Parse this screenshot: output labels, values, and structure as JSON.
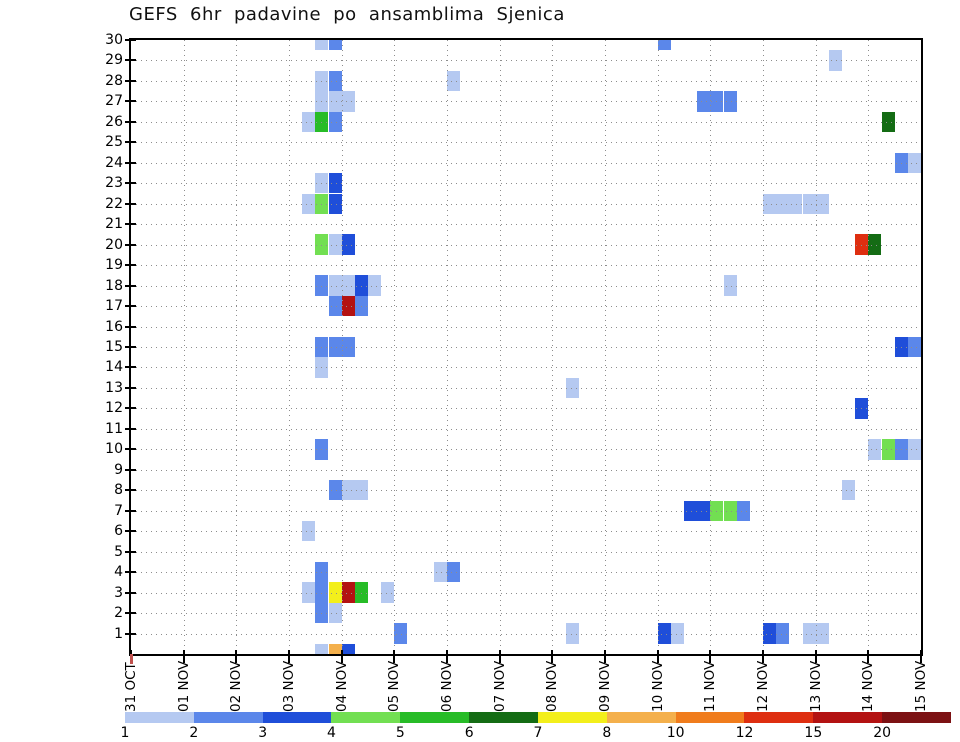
{
  "title": "GEFS 6hr padavine po ansamblima Sjenica",
  "y_axis": {
    "member_labels": [
      "30",
      "29",
      "28",
      "27",
      "26",
      "25",
      "24",
      "23",
      "22",
      "21",
      "20",
      "19",
      "18",
      "17",
      "16",
      "15",
      "14",
      "13",
      "12",
      "11",
      "10",
      "9",
      "8",
      "7",
      "6",
      "5",
      "4",
      "3",
      "2",
      "1"
    ]
  },
  "x_axis": {
    "day_labels": [
      "31 OCT",
      "01 NOV",
      "02 NOV",
      "03 NOV",
      "04 NOV",
      "05 NOV",
      "06 NOV",
      "07 NOV",
      "08 NOV",
      "09 NOV",
      "10 NOV",
      "11 NOV",
      "12 NOV",
      "13 NOV",
      "14 NOV",
      "15 NOV"
    ],
    "origin_marker_color": "#c0504d"
  },
  "colorbar": {
    "boundary_labels": [
      "1",
      "2",
      "3",
      "4",
      "5",
      "6",
      "7",
      "8",
      "10",
      "12",
      "15",
      "20"
    ],
    "segments": [
      {
        "range": "1-2",
        "color": "#b5c9f1"
      },
      {
        "range": "2-3",
        "color": "#5b87ea"
      },
      {
        "range": "3-4",
        "color": "#1f4ed9"
      },
      {
        "range": "4-5",
        "color": "#72df52"
      },
      {
        "range": "5-6",
        "color": "#27bc27"
      },
      {
        "range": "6-7",
        "color": "#146c14"
      },
      {
        "range": "7-8",
        "color": "#f3ef1b"
      },
      {
        "range": "8-10",
        "color": "#f4b04c"
      },
      {
        "range": "10-12",
        "color": "#f07c1c"
      },
      {
        "range": "12-15",
        "color": "#de2e10"
      },
      {
        "range": "15-20",
        "color": "#b31212"
      },
      {
        "range": ">20",
        "color": "#7c1113"
      }
    ]
  },
  "chart_data": {
    "type": "heatmap",
    "title": "GEFS 6hr padavine po ansamblima Sjenica",
    "x_unit": "6-hour periods, day index 0 = 31 OCT, slot 0-3 = 00-06h / 06-12h / 12-18h / 18-00h UTC",
    "y_unit": "ensemble member (1-30, 0 = bottom clipped row at axis)",
    "x_range_labels": [
      "31 OCT",
      "15 NOV"
    ],
    "members_shown": [
      1,
      30
    ],
    "grid": "dotted, one horizontal line per member, one vertical line per day",
    "value_bins_mm": [
      "1-2",
      "2-3",
      "3-4",
      "4-5",
      "5-6",
      "6-7",
      "7-8",
      "8-10",
      "10-12",
      "12-15",
      "15-20",
      ">20"
    ],
    "bin_colors": {
      "1": "#b5c9f1",
      "2": "#5b87ea",
      "3": "#1f4ed9",
      "4": "#72df52",
      "5": "#27bc27",
      "6": "#146c14",
      "7": "#f3ef1b",
      "8": "#f4b04c",
      "10": "#f07c1c",
      "12": "#de2e10",
      "15": "#b31212",
      "20": "#7c1113"
    },
    "slots": [
      "00-06",
      "06-12",
      "12-18",
      "18-00"
    ],
    "cells": [
      {
        "m": 30,
        "d": 3,
        "s": 2,
        "v": "1"
      },
      {
        "m": 30,
        "d": 3,
        "s": 3,
        "v": "2"
      },
      {
        "m": 30,
        "d": 10,
        "s": 0,
        "v": "2"
      },
      {
        "m": 29,
        "d": 13,
        "s": 1,
        "v": "1"
      },
      {
        "m": 28,
        "d": 3,
        "s": 2,
        "v": "1"
      },
      {
        "m": 28,
        "d": 3,
        "s": 3,
        "v": "2"
      },
      {
        "m": 28,
        "d": 6,
        "s": 0,
        "v": "1"
      },
      {
        "m": 27,
        "d": 3,
        "s": 2,
        "v": "1"
      },
      {
        "m": 27,
        "d": 3,
        "s": 3,
        "v": "1"
      },
      {
        "m": 27,
        "d": 4,
        "s": 0,
        "v": "1"
      },
      {
        "m": 27,
        "d": 10,
        "s": 3,
        "v": "2"
      },
      {
        "m": 27,
        "d": 11,
        "s": 0,
        "v": "2"
      },
      {
        "m": 27,
        "d": 11,
        "s": 1,
        "v": "2"
      },
      {
        "m": 26,
        "d": 3,
        "s": 1,
        "v": "1"
      },
      {
        "m": 26,
        "d": 3,
        "s": 2,
        "v": "5"
      },
      {
        "m": 26,
        "d": 3,
        "s": 3,
        "v": "2"
      },
      {
        "m": 26,
        "d": 14,
        "s": 1,
        "v": "6"
      },
      {
        "m": 24,
        "d": 14,
        "s": 2,
        "v": "2"
      },
      {
        "m": 24,
        "d": 14,
        "s": 3,
        "v": "1"
      },
      {
        "m": 23,
        "d": 3,
        "s": 2,
        "v": "1"
      },
      {
        "m": 23,
        "d": 3,
        "s": 3,
        "v": "3"
      },
      {
        "m": 22,
        "d": 3,
        "s": 1,
        "v": "1"
      },
      {
        "m": 22,
        "d": 3,
        "s": 2,
        "v": "4"
      },
      {
        "m": 22,
        "d": 3,
        "s": 3,
        "v": "3"
      },
      {
        "m": 22,
        "d": 12,
        "s": 0,
        "v": "1"
      },
      {
        "m": 22,
        "d": 12,
        "s": 1,
        "v": "1"
      },
      {
        "m": 22,
        "d": 12,
        "s": 2,
        "v": "1"
      },
      {
        "m": 22,
        "d": 12,
        "s": 3,
        "v": "1"
      },
      {
        "m": 22,
        "d": 13,
        "s": 0,
        "v": "1"
      },
      {
        "m": 20,
        "d": 3,
        "s": 2,
        "v": "4"
      },
      {
        "m": 20,
        "d": 3,
        "s": 3,
        "v": "1"
      },
      {
        "m": 20,
        "d": 4,
        "s": 0,
        "v": "3"
      },
      {
        "m": 20,
        "d": 13,
        "s": 3,
        "v": "12"
      },
      {
        "m": 20,
        "d": 14,
        "s": 0,
        "v": "6"
      },
      {
        "m": 18,
        "d": 3,
        "s": 2,
        "v": "2"
      },
      {
        "m": 18,
        "d": 3,
        "s": 3,
        "v": "1"
      },
      {
        "m": 18,
        "d": 4,
        "s": 0,
        "v": "1"
      },
      {
        "m": 18,
        "d": 4,
        "s": 1,
        "v": "3"
      },
      {
        "m": 18,
        "d": 4,
        "s": 2,
        "v": "1"
      },
      {
        "m": 18,
        "d": 11,
        "s": 1,
        "v": "1"
      },
      {
        "m": 17,
        "d": 3,
        "s": 3,
        "v": "2"
      },
      {
        "m": 17,
        "d": 4,
        "s": 0,
        "v": "15"
      },
      {
        "m": 17,
        "d": 4,
        "s": 1,
        "v": "2"
      },
      {
        "m": 15,
        "d": 3,
        "s": 2,
        "v": "2"
      },
      {
        "m": 15,
        "d": 3,
        "s": 3,
        "v": "2"
      },
      {
        "m": 15,
        "d": 4,
        "s": 0,
        "v": "2"
      },
      {
        "m": 15,
        "d": 14,
        "s": 2,
        "v": "3"
      },
      {
        "m": 15,
        "d": 14,
        "s": 3,
        "v": "2"
      },
      {
        "m": 14,
        "d": 3,
        "s": 2,
        "v": "1"
      },
      {
        "m": 13,
        "d": 8,
        "s": 1,
        "v": "1"
      },
      {
        "m": 12,
        "d": 13,
        "s": 3,
        "v": "3"
      },
      {
        "m": 10,
        "d": 3,
        "s": 2,
        "v": "2"
      },
      {
        "m": 10,
        "d": 14,
        "s": 0,
        "v": "1"
      },
      {
        "m": 10,
        "d": 14,
        "s": 1,
        "v": "4"
      },
      {
        "m": 10,
        "d": 14,
        "s": 2,
        "v": "2"
      },
      {
        "m": 10,
        "d": 14,
        "s": 3,
        "v": "1"
      },
      {
        "m": 8,
        "d": 3,
        "s": 3,
        "v": "2"
      },
      {
        "m": 8,
        "d": 4,
        "s": 0,
        "v": "1"
      },
      {
        "m": 8,
        "d": 4,
        "s": 1,
        "v": "1"
      },
      {
        "m": 8,
        "d": 13,
        "s": 2,
        "v": "1"
      },
      {
        "m": 7,
        "d": 10,
        "s": 2,
        "v": "3"
      },
      {
        "m": 7,
        "d": 10,
        "s": 3,
        "v": "3"
      },
      {
        "m": 7,
        "d": 11,
        "s": 0,
        "v": "4"
      },
      {
        "m": 7,
        "d": 11,
        "s": 1,
        "v": "4"
      },
      {
        "m": 7,
        "d": 11,
        "s": 2,
        "v": "2"
      },
      {
        "m": 6,
        "d": 3,
        "s": 1,
        "v": "1"
      },
      {
        "m": 4,
        "d": 3,
        "s": 2,
        "v": "2"
      },
      {
        "m": 4,
        "d": 5,
        "s": 3,
        "v": "1"
      },
      {
        "m": 4,
        "d": 6,
        "s": 0,
        "v": "2"
      },
      {
        "m": 3,
        "d": 3,
        "s": 1,
        "v": "1"
      },
      {
        "m": 3,
        "d": 3,
        "s": 2,
        "v": "2"
      },
      {
        "m": 3,
        "d": 3,
        "s": 3,
        "v": "7"
      },
      {
        "m": 3,
        "d": 4,
        "s": 0,
        "v": "15"
      },
      {
        "m": 3,
        "d": 4,
        "s": 1,
        "v": "5"
      },
      {
        "m": 3,
        "d": 4,
        "s": 3,
        "v": "1"
      },
      {
        "m": 2,
        "d": 3,
        "s": 2,
        "v": "2"
      },
      {
        "m": 2,
        "d": 3,
        "s": 3,
        "v": "1"
      },
      {
        "m": 1,
        "d": 5,
        "s": 0,
        "v": "2"
      },
      {
        "m": 1,
        "d": 8,
        "s": 1,
        "v": "1"
      },
      {
        "m": 1,
        "d": 10,
        "s": 0,
        "v": "3"
      },
      {
        "m": 1,
        "d": 10,
        "s": 1,
        "v": "1"
      },
      {
        "m": 1,
        "d": 12,
        "s": 0,
        "v": "3"
      },
      {
        "m": 1,
        "d": 12,
        "s": 1,
        "v": "2"
      },
      {
        "m": 1,
        "d": 12,
        "s": 3,
        "v": "1"
      },
      {
        "m": 1,
        "d": 13,
        "s": 0,
        "v": "1"
      },
      {
        "m": 0,
        "d": 3,
        "s": 2,
        "v": "1"
      },
      {
        "m": 0,
        "d": 3,
        "s": 3,
        "v": "8"
      },
      {
        "m": 0,
        "d": 4,
        "s": 0,
        "v": "3"
      }
    ]
  }
}
